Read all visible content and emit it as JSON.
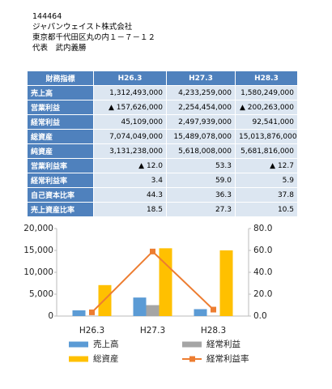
{
  "header": {
    "code": "144464",
    "company": "ジャパンウェイスト株式会社",
    "address": "東京都千代田区丸の内１－７－１２",
    "representative": "代表　武内義勝"
  },
  "table": {
    "header": [
      "財務指標",
      "H26.3",
      "H27.3",
      "H28.3"
    ],
    "rows": [
      [
        "売上高",
        "1,312,493,000",
        "4,233,259,000",
        "1,580,249,000"
      ],
      [
        "営業利益",
        "▲ 157,626,000",
        "2,254,454,000",
        "▲ 200,263,000"
      ],
      [
        "経常利益",
        "45,109,000",
        "2,497,939,000",
        "92,541,000"
      ],
      [
        "総資産",
        "7,074,049,000",
        "15,489,078,000",
        "15,013,876,000"
      ],
      [
        "純資産",
        "3,131,238,000",
        "5,618,008,000",
        "5,681,816,000"
      ],
      [
        "営業利益率",
        "▲ 12.0",
        "53.3",
        "▲ 12.7"
      ],
      [
        "経常利益率",
        "3.4",
        "59.0",
        "5.9"
      ],
      [
        "自己資本比率",
        "44.3",
        "36.3",
        "37.8"
      ],
      [
        "売上資産比率",
        "18.5",
        "27.3",
        "10.5"
      ]
    ]
  },
  "chart_data": {
    "type": "bar",
    "categories": [
      "H26.3",
      "H27.3",
      "H28.3"
    ],
    "series": [
      {
        "name": "売上高",
        "color": "#5b9bd5",
        "values": [
          1312,
          4233,
          1580
        ]
      },
      {
        "name": "経常利益",
        "color": "#a5a5a5",
        "values": [
          45,
          2498,
          93
        ]
      },
      {
        "name": "総資産",
        "color": "#ffc000",
        "values": [
          7074,
          15489,
          15014
        ]
      },
      {
        "name": "経常利益率",
        "color": "#ed7d31",
        "type": "line",
        "axis": "y2",
        "values": [
          3.4,
          59.0,
          5.9
        ]
      }
    ],
    "ylim": [
      0,
      20000
    ],
    "yticks": [
      0,
      {
        "value": 5000,
        "label": "5,000"
      },
      {
        "value": 10000,
        "label": "10,000"
      },
      {
        "value": 15000,
        "label": "15,000"
      },
      {
        "value": 20000,
        "label": "20,000"
      }
    ],
    "y2lim": [
      0,
      80
    ],
    "y2ticks": [
      {
        "value": 0,
        "label": "0.0"
      },
      {
        "value": 20,
        "label": "20.0"
      },
      {
        "value": 40,
        "label": "40.0"
      },
      {
        "value": 60,
        "label": "60.0"
      },
      {
        "value": 80,
        "label": "80.0"
      }
    ],
    "grid": false
  }
}
